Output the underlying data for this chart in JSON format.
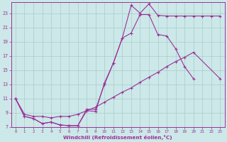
{
  "background_color": "#cce8e8",
  "grid_color": "#aacccc",
  "line_color": "#993399",
  "xlabel": "Windchill (Refroidissement éolien,°C)",
  "xlim": [
    -0.5,
    23.5
  ],
  "ylim": [
    7,
    24.5
  ],
  "yticks": [
    7,
    9,
    11,
    13,
    15,
    17,
    19,
    21,
    23
  ],
  "xticks": [
    0,
    1,
    2,
    3,
    4,
    5,
    6,
    7,
    8,
    9,
    10,
    11,
    12,
    13,
    14,
    15,
    16,
    17,
    18,
    19,
    20,
    21,
    22,
    23
  ],
  "line1_x": [
    0,
    1,
    2,
    3,
    4,
    5,
    6,
    7,
    8,
    9,
    10,
    11,
    12,
    13,
    14,
    15,
    16,
    17,
    18,
    19,
    20,
    21,
    22,
    23
  ],
  "line1_y": [
    11.0,
    8.5,
    8.2,
    7.5,
    7.7,
    7.3,
    7.2,
    7.2,
    9.3,
    9.2,
    13.2,
    16.0,
    19.5,
    24.1,
    23.0,
    24.3,
    22.7,
    22.6,
    22.6,
    22.6,
    22.6,
    22.6,
    22.6,
    22.6
  ],
  "line2_x": [
    0,
    1,
    2,
    3,
    4,
    5,
    6,
    7,
    8,
    9,
    10,
    11,
    12,
    13,
    14,
    15,
    16,
    17,
    18,
    19,
    20,
    21,
    22,
    23
  ],
  "line2_y": [
    11.0,
    8.5,
    8.2,
    7.5,
    7.7,
    7.3,
    7.2,
    7.2,
    9.5,
    9.5,
    13.0,
    16.0,
    19.5,
    20.2,
    22.8,
    22.8,
    20.0,
    19.8,
    18.0,
    15.5,
    13.8,
    null,
    null,
    null
  ],
  "line3_x": [
    0,
    1,
    2,
    3,
    4,
    5,
    6,
    7,
    8,
    9,
    10,
    11,
    12,
    13,
    14,
    15,
    16,
    17,
    18,
    19,
    20,
    21,
    22,
    23
  ],
  "line3_y": [
    11.0,
    8.8,
    8.5,
    8.5,
    8.3,
    8.5,
    8.5,
    8.8,
    9.3,
    9.8,
    10.5,
    11.2,
    11.9,
    12.5,
    13.3,
    14.0,
    14.7,
    15.5,
    16.2,
    16.8,
    17.5,
    null,
    null,
    13.8
  ]
}
